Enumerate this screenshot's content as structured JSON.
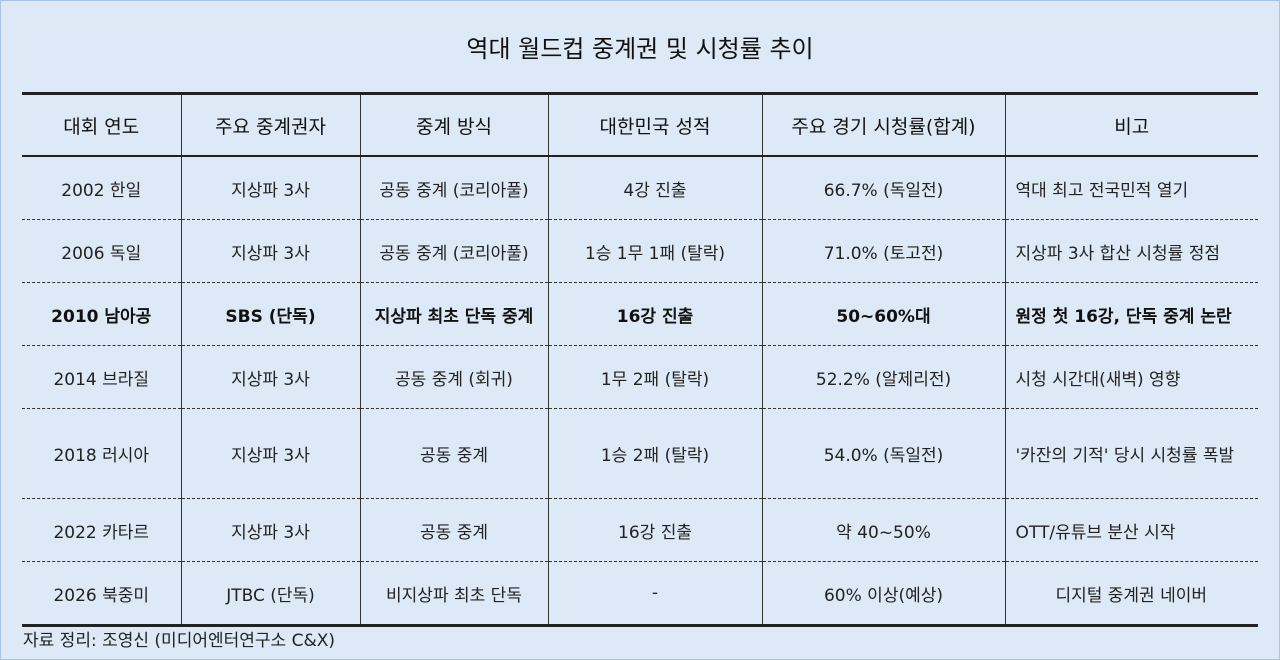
{
  "title": "역대 월드컵 중계권 및 시청률 추이",
  "table": {
    "header": [
      "대회 연도",
      "주요 중계권자",
      "중계 방식",
      "대한민국 성적",
      "주요 경기 시청률(합계)",
      "비고"
    ],
    "rows": [
      [
        "2002 한일",
        "지상파 3사",
        "공동 중계 (코리아풀)",
        "4강 진출",
        "66.7% (독일전)",
        "역대 최고 전국민적 열기"
      ],
      [
        "2006 독일",
        "지상파 3사",
        "공동 중계 (코리아풀)",
        "1승 1무 1패 (탈락)",
        "71.0% (토고전)",
        "지상파 3사 합산 시청률 정점"
      ],
      [
        "2010 남아공",
        "SBS (단독)",
        "지상파 최초 단독 중계",
        "16강 진출",
        "50~60%대",
        "원정 첫 16강, 단독 중계 논란"
      ],
      [
        "2014 브라질",
        "지상파 3사",
        "공동 중계 (회귀)",
        "1무 2패 (탈락)",
        "52.2% (알제리전)",
        "시청 시간대(새벽) 영향"
      ],
      [
        "2018 러시아",
        "지상파 3사",
        "공동 중계",
        "1승 2패 (탈락)",
        "54.0% (독일전)",
        "'카잔의 기적' 당시 시청률 폭발"
      ],
      [
        "2022 카타르",
        "지상파 3사",
        "공동 중계",
        "16강 진출",
        "약 40~50%",
        "OTT/유튜브 분산 시작"
      ],
      [
        "2026 북중미",
        "JTBC (단독)",
        "비지상파 최초 단독",
        "-",
        "60% 이상(예상)",
        "디지털 중계권 네이버"
      ]
    ]
  },
  "source": "자료 정리: 조영신 (미디어엔터연구소 C&X)"
}
